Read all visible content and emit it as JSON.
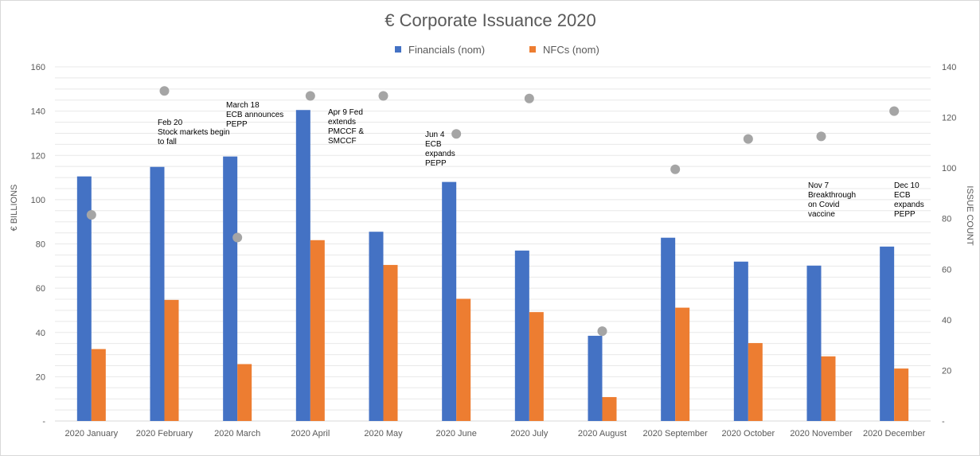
{
  "chart_data": {
    "type": "bar",
    "title": "€ Corporate Issuance 2020",
    "categories": [
      "2020 January",
      "2020 February",
      "2020 March",
      "2020 April",
      "2020 May",
      "2020 June",
      "2020 July",
      "2020 August",
      "2020 September",
      "2020 October",
      "2020 November",
      "2020 December"
    ],
    "series": [
      {
        "name": "Financials (nom)",
        "type": "bar",
        "axis": "left",
        "color": "#4472c4",
        "values": [
          110.5,
          114.8,
          119.5,
          140.5,
          85.5,
          108,
          77,
          38.5,
          82.8,
          72,
          70.2,
          78.8
        ]
      },
      {
        "name": "NFCs (nom)",
        "type": "bar",
        "axis": "left",
        "color": "#ed7d31",
        "values": [
          32.5,
          54.7,
          25.7,
          81.7,
          70.5,
          55.2,
          49.2,
          10.8,
          51.2,
          35.2,
          29.2,
          23.7
        ]
      },
      {
        "type": "scatter",
        "axis": "right",
        "color": "#a5a5a5",
        "values": [
          81.5,
          130.5,
          72.5,
          128.5,
          128.5,
          113.5,
          127.5,
          35.5,
          99.5,
          111.5,
          112.5,
          122.5
        ]
      }
    ],
    "ylabel": "€ BILLIONS",
    "y2label": "ISSUE COUNT",
    "ylim": [
      0,
      160
    ],
    "y2lim": [
      0,
      140
    ],
    "yticks": [
      "-",
      "20",
      "40",
      "60",
      "80",
      "100",
      "120",
      "140",
      "160"
    ],
    "y2ticks": [
      "-",
      "20",
      "40",
      "60",
      "80",
      "100",
      "120",
      "140"
    ],
    "grid": true,
    "legend": "top-center",
    "annotations": [
      {
        "category_index": 1,
        "lines": [
          "Feb 20",
          "Stock markets begin",
          "to fall"
        ]
      },
      {
        "category_index": 2,
        "lines": [
          "March 18",
          "ECB announces",
          "PEPP"
        ]
      },
      {
        "category_index": 3,
        "lines": [
          "Apr 9 Fed",
          "extends",
          "PMCCF &",
          "SMCCF"
        ]
      },
      {
        "category_index": 5,
        "lines": [
          "Jun 4",
          "ECB",
          "expands",
          "PEPP"
        ]
      },
      {
        "category_index": 10,
        "lines": [
          "Nov 7",
          "Breakthrough",
          "on Covid",
          "vaccine"
        ]
      },
      {
        "category_index": 11,
        "lines": [
          "Dec 10",
          "ECB",
          "expands",
          "PEPP"
        ]
      }
    ]
  }
}
